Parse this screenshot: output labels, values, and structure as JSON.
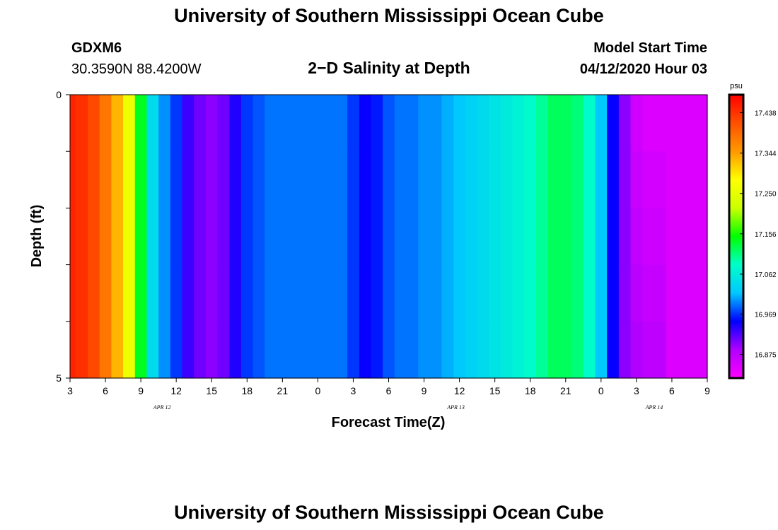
{
  "header": {
    "title": "University of Southern Mississippi Ocean Cube",
    "station": "GDXM6",
    "location": "30.3590N 88.4200W",
    "plot_title": "2−D Salinity at Depth",
    "model_start_label": "Model Start Time",
    "model_start_value": "04/12/2020 Hour 03"
  },
  "footer": {
    "title": "University of Southern Mississippi Ocean Cube"
  },
  "chart_data": {
    "type": "heatmap",
    "title": "2−D Salinity at Depth",
    "xlabel": "Forecast Time(Z)",
    "ylabel": "Depth (ft)",
    "x_tick_labels": [
      "3",
      "6",
      "9",
      "12",
      "15",
      "18",
      "21",
      "0",
      "3",
      "6",
      "9",
      "12",
      "15",
      "18",
      "21",
      "0",
      "3",
      "6",
      "9"
    ],
    "x_date_labels": [
      {
        "label": "APR  12",
        "tick_index": 2.6
      },
      {
        "label": "APR  13",
        "tick_index": 10.9
      },
      {
        "label": "APR  14",
        "tick_index": 16.5
      }
    ],
    "y_tick_labels": [
      "0",
      "5"
    ],
    "ylim": [
      0,
      5
    ],
    "hours": [
      3,
      4,
      5,
      6,
      7,
      8,
      9,
      10,
      11,
      12,
      13,
      14,
      15,
      16,
      17,
      18,
      19,
      20,
      21,
      22,
      23,
      24,
      25,
      26,
      27,
      28,
      29,
      30,
      31,
      32,
      33,
      34,
      35,
      36,
      37,
      38,
      39,
      40,
      41,
      42,
      43,
      44,
      45,
      46,
      47,
      48,
      49,
      50,
      51,
      52,
      53,
      54,
      55,
      56,
      57
    ],
    "depth_levels": [
      0,
      1,
      2,
      3,
      4,
      5
    ],
    "salinity_profile_surface": [
      17.45,
      17.44,
      17.42,
      17.38,
      17.33,
      17.26,
      17.14,
      17.04,
      17.0,
      16.97,
      16.93,
      16.91,
      16.9,
      16.91,
      16.94,
      16.97,
      16.98,
      16.99,
      16.99,
      16.99,
      16.99,
      16.99,
      16.99,
      16.99,
      16.97,
      16.95,
      16.96,
      16.98,
      16.99,
      16.99,
      17.0,
      17.0,
      17.01,
      17.02,
      17.03,
      17.04,
      17.05,
      17.06,
      17.07,
      17.08,
      17.1,
      17.12,
      17.12,
      17.11,
      17.08,
      17.02,
      16.95,
      16.9,
      16.86,
      16.85,
      16.85,
      16.85,
      16.85,
      16.85,
      16.85
    ],
    "colorbar": {
      "unit": "psu",
      "labels": [
        "17.438",
        "17.344",
        "17.250",
        "17.156",
        "17.062",
        "16.969",
        "16.875"
      ],
      "min": 16.82,
      "max": 17.48,
      "colors": [
        "#ff00ff",
        "#b000ff",
        "#0000ff",
        "#00c8ff",
        "#00ffc8",
        "#00ff00",
        "#ccff00",
        "#ffff00",
        "#ff9900",
        "#ff5000",
        "#ff0000"
      ]
    }
  }
}
